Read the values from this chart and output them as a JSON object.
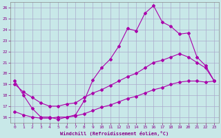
{
  "xlabel": "Windchill (Refroidissement éolien,°C)",
  "bg_color": "#c8e8e8",
  "grid_color": "#aaaacc",
  "line_color": "#aa00aa",
  "xlim": [
    -0.5,
    23.5
  ],
  "ylim": [
    15.5,
    26.5
  ],
  "yticks": [
    16,
    17,
    18,
    19,
    20,
    21,
    22,
    23,
    24,
    25,
    26
  ],
  "xticks": [
    0,
    1,
    2,
    3,
    4,
    5,
    6,
    7,
    8,
    9,
    10,
    11,
    12,
    13,
    14,
    15,
    16,
    17,
    18,
    19,
    20,
    21,
    22,
    23
  ],
  "line1_x": [
    0,
    1,
    2,
    3,
    4,
    5,
    6,
    7,
    8,
    9,
    10,
    11,
    12,
    13,
    14,
    15,
    16,
    17,
    18,
    19,
    20,
    21,
    22,
    23
  ],
  "line1_y": [
    19.3,
    18.0,
    16.8,
    16.0,
    16.0,
    15.8,
    16.0,
    16.2,
    17.5,
    19.4,
    20.5,
    21.3,
    22.5,
    24.1,
    23.9,
    25.5,
    26.2,
    24.7,
    24.3,
    23.6,
    23.7,
    21.5,
    20.7,
    19.3
  ],
  "line2_x": [
    0,
    1,
    2,
    3,
    4,
    5,
    6,
    7,
    8,
    9,
    10,
    11,
    12,
    13,
    14,
    15,
    16,
    17,
    18,
    19,
    20,
    21,
    22,
    23
  ],
  "line2_y": [
    19.0,
    18.3,
    17.8,
    17.3,
    17.0,
    17.0,
    17.2,
    17.3,
    17.8,
    18.2,
    18.5,
    18.9,
    19.3,
    19.7,
    20.0,
    20.5,
    21.0,
    21.2,
    21.5,
    21.8,
    21.5,
    21.0,
    20.5,
    19.3
  ],
  "line3_x": [
    0,
    1,
    2,
    3,
    4,
    5,
    6,
    7,
    8,
    9,
    10,
    11,
    12,
    13,
    14,
    15,
    16,
    17,
    18,
    19,
    20,
    21,
    22,
    23
  ],
  "line3_y": [
    16.5,
    16.2,
    16.0,
    15.9,
    15.9,
    16.0,
    16.0,
    16.1,
    16.3,
    16.6,
    16.9,
    17.1,
    17.4,
    17.7,
    17.9,
    18.2,
    18.5,
    18.7,
    19.0,
    19.2,
    19.3,
    19.3,
    19.2,
    19.3
  ]
}
